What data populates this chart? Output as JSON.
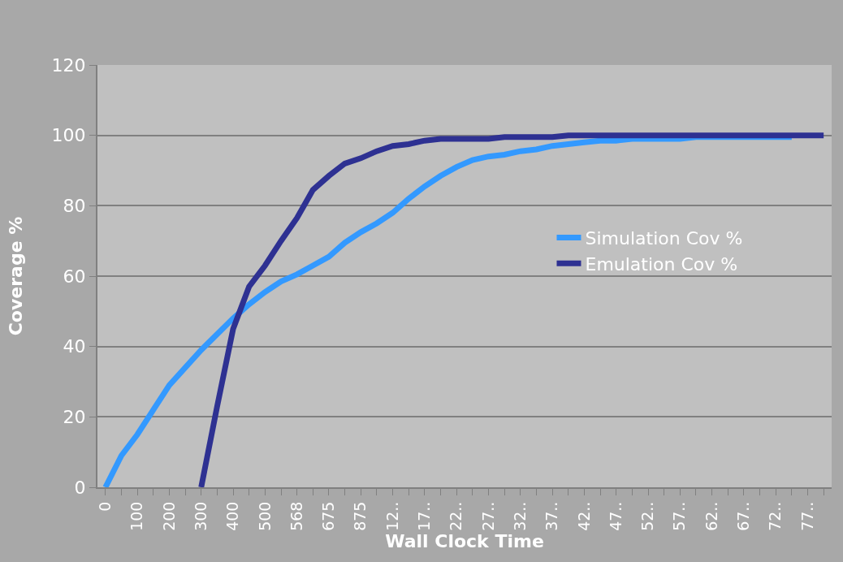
{
  "chart_data": {
    "type": "line",
    "xlabel": "Wall Clock Time",
    "ylabel": "Coverage %",
    "categories": [
      "0",
      null,
      "100",
      null,
      "200",
      null,
      "300",
      null,
      "400",
      null,
      "500",
      null,
      "568",
      null,
      "675",
      null,
      "875",
      null,
      "12..",
      null,
      "17..",
      null,
      "22..",
      null,
      "27..",
      null,
      "32..",
      null,
      "37..",
      null,
      "42..",
      null,
      "47..",
      null,
      "52..",
      null,
      "57..",
      null,
      "62..",
      null,
      "67..",
      null,
      "72..",
      null,
      "77..",
      null
    ],
    "series": [
      {
        "name": "Simulation Cov %",
        "color": "#3399ff",
        "values": [
          0,
          9,
          15,
          22,
          29,
          34,
          39,
          43.5,
          48,
          52,
          55.5,
          58.5,
          60.5,
          63,
          65.5,
          69.5,
          72.5,
          75,
          78,
          82,
          85.5,
          88.5,
          91,
          93,
          94,
          94.5,
          95.5,
          96,
          97,
          97.5,
          98,
          98.5,
          98.5,
          99,
          99,
          99,
          99,
          99.5,
          99.5,
          99.5,
          99.5,
          99.5,
          99.5,
          99.5,
          null,
          null
        ]
      },
      {
        "name": "Emulation Cov %",
        "color": "#2e3192",
        "values": [
          null,
          null,
          null,
          null,
          null,
          null,
          0,
          23,
          45,
          57,
          63,
          70,
          76.5,
          84.5,
          88.5,
          92,
          93.5,
          95.5,
          97,
          97.5,
          98.5,
          99,
          99,
          99,
          99,
          99.5,
          99.5,
          99.5,
          99.5,
          100,
          100,
          100,
          100,
          100,
          100,
          100,
          100,
          100,
          100,
          100,
          100,
          100,
          100,
          100,
          100,
          100
        ]
      }
    ],
    "ylim": [
      0,
      120
    ],
    "yticks": [
      0,
      20,
      40,
      60,
      80,
      100,
      120
    ],
    "grid": "y",
    "legend": "right",
    "marker": "none",
    "line_style": "solid"
  }
}
